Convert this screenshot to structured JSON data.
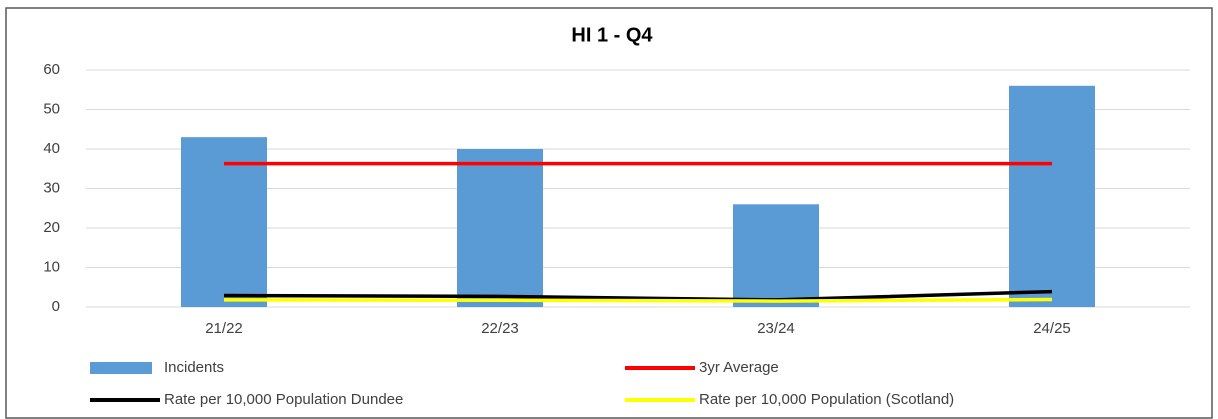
{
  "chart_data": {
    "type": "bar",
    "title": "HI 1 - Q4",
    "categories": [
      "21/22",
      "22/23",
      "23/24",
      "24/25"
    ],
    "series": [
      {
        "name": "Incidents",
        "type": "bar",
        "color": "#5b9bd5",
        "values": [
          43,
          40,
          26,
          56
        ]
      },
      {
        "name": "3yr Average",
        "type": "line",
        "color": "#ff0000",
        "values": [
          36.3,
          36.3,
          36.3,
          36.3
        ]
      },
      {
        "name": "Rate per 10,000 Population Dundee",
        "type": "line",
        "color": "#000000",
        "values": [
          2.9,
          2.7,
          1.8,
          3.9
        ]
      },
      {
        "name": "Rate per 10,000 Population (Scotland)",
        "type": "line",
        "color": "#ffff00",
        "values": [
          1.8,
          1.7,
          1.5,
          1.9
        ]
      }
    ],
    "ylim": [
      0,
      60
    ],
    "yticks": [
      0,
      10,
      20,
      30,
      40,
      50,
      60
    ],
    "grid": true,
    "legend": "bottom"
  }
}
